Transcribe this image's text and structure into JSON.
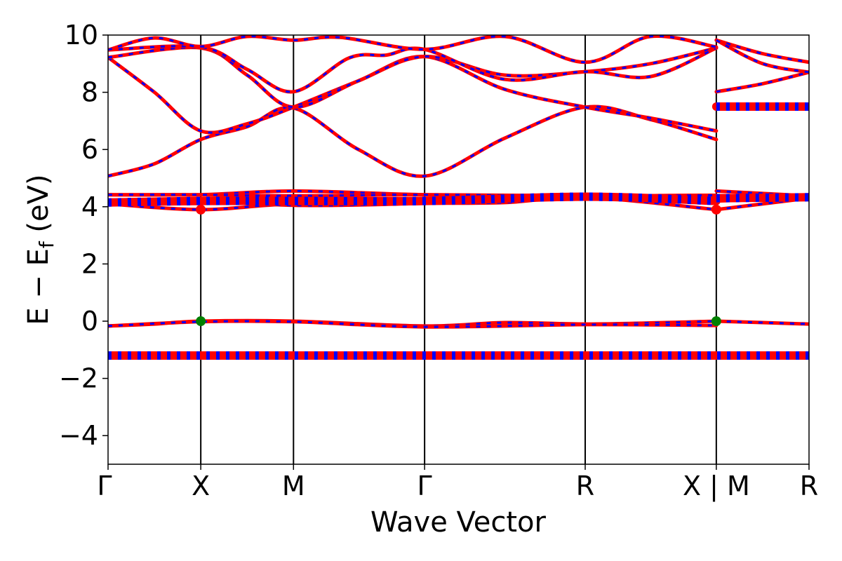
{
  "chart_data": {
    "type": "line",
    "xlabel": "Wave Vector",
    "ylabel_main": "E − E",
    "ylabel_sub": "f",
    "ylabel_unit": " (eV)",
    "ylim": [
      -5,
      10
    ],
    "yticks": [
      -4,
      -2,
      0,
      2,
      4,
      6,
      8,
      10
    ],
    "ytick_labels": [
      "−4",
      "−2",
      "0",
      "2",
      "4",
      "6",
      "8",
      "10"
    ],
    "kpoints": [
      {
        "label": "Γ",
        "x": 0
      },
      {
        "label": "X",
        "x": 1.0
      },
      {
        "label": "M",
        "x": 2.0
      },
      {
        "label": "Γ",
        "x": 3.414
      },
      {
        "label": "R",
        "x": 5.146
      },
      {
        "label": "X | M",
        "x": 6.56
      },
      {
        "label": "R",
        "x": 7.56
      }
    ],
    "xlim": [
      0,
      7.56
    ],
    "grid": false,
    "legend": false,
    "colors": {
      "spin_up": "#ff0000",
      "spin_down": "#0000ff",
      "cbm": "#ff0000",
      "vbm": "#008000"
    },
    "series": [
      {
        "values": [
          [
            0,
            -1.22
          ],
          [
            1,
            -1.18
          ],
          [
            2,
            -1.18
          ],
          [
            3.414,
            -1.22
          ],
          [
            5.146,
            -1.22
          ],
          [
            6.56,
            -1.18
          ]
        ]
      },
      {
        "values": [
          [
            6.56,
            -1.18
          ],
          [
            7.56,
            -1.22
          ]
        ]
      },
      {
        "values": [
          [
            0,
            -0.17
          ],
          [
            0.5,
            -0.1
          ],
          [
            1,
            0.0
          ],
          [
            2,
            0.0
          ],
          [
            3.414,
            -0.17
          ],
          [
            4.28,
            -0.05
          ],
          [
            5.146,
            -0.1
          ],
          [
            6.0,
            -0.05
          ],
          [
            6.56,
            0.0
          ]
        ]
      },
      {
        "values": [
          [
            0,
            -0.17
          ],
          [
            1,
            -0.02
          ],
          [
            2,
            -0.02
          ],
          [
            3.414,
            -0.2
          ],
          [
            5.146,
            -0.12
          ],
          [
            6.56,
            -0.15
          ]
        ]
      },
      {
        "values": [
          [
            6.56,
            0.0
          ],
          [
            7.56,
            -0.1
          ]
        ]
      },
      {
        "values": [
          [
            0,
            4.1
          ],
          [
            1,
            3.9
          ],
          [
            2,
            4.1
          ],
          [
            3.414,
            4.12
          ],
          [
            4.3,
            4.15
          ],
          [
            5.146,
            4.33
          ],
          [
            6.56,
            3.9
          ]
        ]
      },
      {
        "values": [
          [
            0,
            4.2
          ],
          [
            1,
            4.25
          ],
          [
            2,
            4.05
          ],
          [
            3.414,
            4.12
          ],
          [
            5.146,
            4.33
          ],
          [
            6.56,
            4.15
          ]
        ]
      },
      {
        "values": [
          [
            0,
            4.42
          ],
          [
            1,
            4.42
          ],
          [
            2,
            4.55
          ],
          [
            3.414,
            4.42
          ],
          [
            5.146,
            4.38
          ],
          [
            6.56,
            4.4
          ]
        ]
      },
      {
        "values": [
          [
            0,
            4.42
          ],
          [
            1,
            4.42
          ],
          [
            2,
            4.38
          ],
          [
            3.414,
            4.42
          ],
          [
            5.146,
            4.38
          ],
          [
            6.56,
            4.4
          ]
        ]
      },
      {
        "values": [
          [
            6.56,
            3.9
          ],
          [
            7.56,
            4.3
          ]
        ]
      },
      {
        "values": [
          [
            6.56,
            4.2
          ],
          [
            7.56,
            4.3
          ]
        ]
      },
      {
        "values": [
          [
            6.56,
            4.55
          ],
          [
            7.56,
            4.38
          ]
        ]
      },
      {
        "values": [
          [
            0,
            5.07
          ],
          [
            0.5,
            5.5
          ],
          [
            1,
            6.35
          ],
          [
            1.5,
            6.8
          ],
          [
            2,
            7.45
          ],
          [
            2.7,
            6.0
          ],
          [
            3.414,
            5.07
          ],
          [
            4.28,
            6.4
          ],
          [
            5.146,
            7.48
          ],
          [
            5.85,
            7.05
          ],
          [
            6.56,
            6.35
          ]
        ]
      },
      {
        "values": [
          [
            0,
            9.22
          ],
          [
            0.5,
            8.0
          ],
          [
            1,
            6.65
          ],
          [
            1.5,
            6.9
          ],
          [
            2,
            7.48
          ],
          [
            2.7,
            8.4
          ],
          [
            3.414,
            9.25
          ],
          [
            4.28,
            8.1
          ],
          [
            5.146,
            7.48
          ],
          [
            5.85,
            7.1
          ],
          [
            6.56,
            6.65
          ]
        ]
      },
      {
        "values": [
          [
            0,
            9.22
          ],
          [
            1,
            9.55
          ],
          [
            1.5,
            8.6
          ],
          [
            2,
            7.48
          ],
          [
            2.7,
            8.4
          ],
          [
            3.414,
            9.25
          ],
          [
            4.28,
            8.6
          ],
          [
            5.146,
            8.72
          ],
          [
            5.85,
            9.0
          ],
          [
            6.56,
            9.55
          ]
        ]
      },
      {
        "values": [
          [
            0,
            9.48
          ],
          [
            1,
            9.58
          ],
          [
            1.5,
            8.8
          ],
          [
            2,
            8.02
          ],
          [
            2.6,
            9.2
          ],
          [
            3.0,
            9.3
          ],
          [
            3.414,
            9.5
          ],
          [
            4.28,
            8.45
          ],
          [
            5.146,
            8.72
          ],
          [
            5.85,
            8.55
          ],
          [
            6.56,
            9.55
          ]
        ]
      },
      {
        "values": [
          [
            0,
            9.48
          ],
          [
            0.5,
            9.9
          ],
          [
            1,
            9.6
          ],
          [
            1.5,
            9.95
          ],
          [
            2,
            9.82
          ],
          [
            2.5,
            9.92
          ],
          [
            3.414,
            9.5
          ],
          [
            4.28,
            9.95
          ],
          [
            5.146,
            9.05
          ],
          [
            5.85,
            9.95
          ],
          [
            6.56,
            9.58
          ]
        ]
      },
      {
        "values": [
          [
            6.56,
            8.02
          ],
          [
            7.06,
            8.3
          ],
          [
            7.56,
            8.7
          ]
        ]
      },
      {
        "values": [
          [
            6.56,
            7.48
          ],
          [
            7.56,
            7.48
          ]
        ]
      },
      {
        "values": [
          [
            6.56,
            9.82
          ],
          [
            7.06,
            9.35
          ],
          [
            7.56,
            9.05
          ]
        ]
      },
      {
        "values": [
          [
            6.56,
            9.82
          ],
          [
            7.06,
            9.0
          ],
          [
            7.56,
            8.7
          ]
        ]
      }
    ],
    "thick_bands": [
      {
        "values": [
          [
            0,
            4.15
          ],
          [
            1,
            4.2
          ],
          [
            2,
            4.2
          ],
          [
            3.414,
            4.2
          ],
          [
            5.146,
            4.35
          ],
          [
            6.56,
            4.2
          ]
        ]
      },
      {
        "values": [
          [
            6.56,
            4.3
          ],
          [
            7.56,
            4.33
          ]
        ]
      },
      {
        "values": [
          [
            0,
            -1.2
          ],
          [
            7.56,
            -1.2
          ]
        ]
      },
      {
        "values": [
          [
            6.56,
            7.5
          ],
          [
            7.56,
            7.5
          ]
        ]
      }
    ],
    "markers": [
      {
        "x": 1.0,
        "y": 3.9,
        "color": "#ff0000"
      },
      {
        "x": 6.56,
        "y": 3.9,
        "color": "#ff0000"
      },
      {
        "x": 1.0,
        "y": 0.0,
        "color": "#008000"
      },
      {
        "x": 6.56,
        "y": 0.0,
        "color": "#008000"
      }
    ]
  }
}
